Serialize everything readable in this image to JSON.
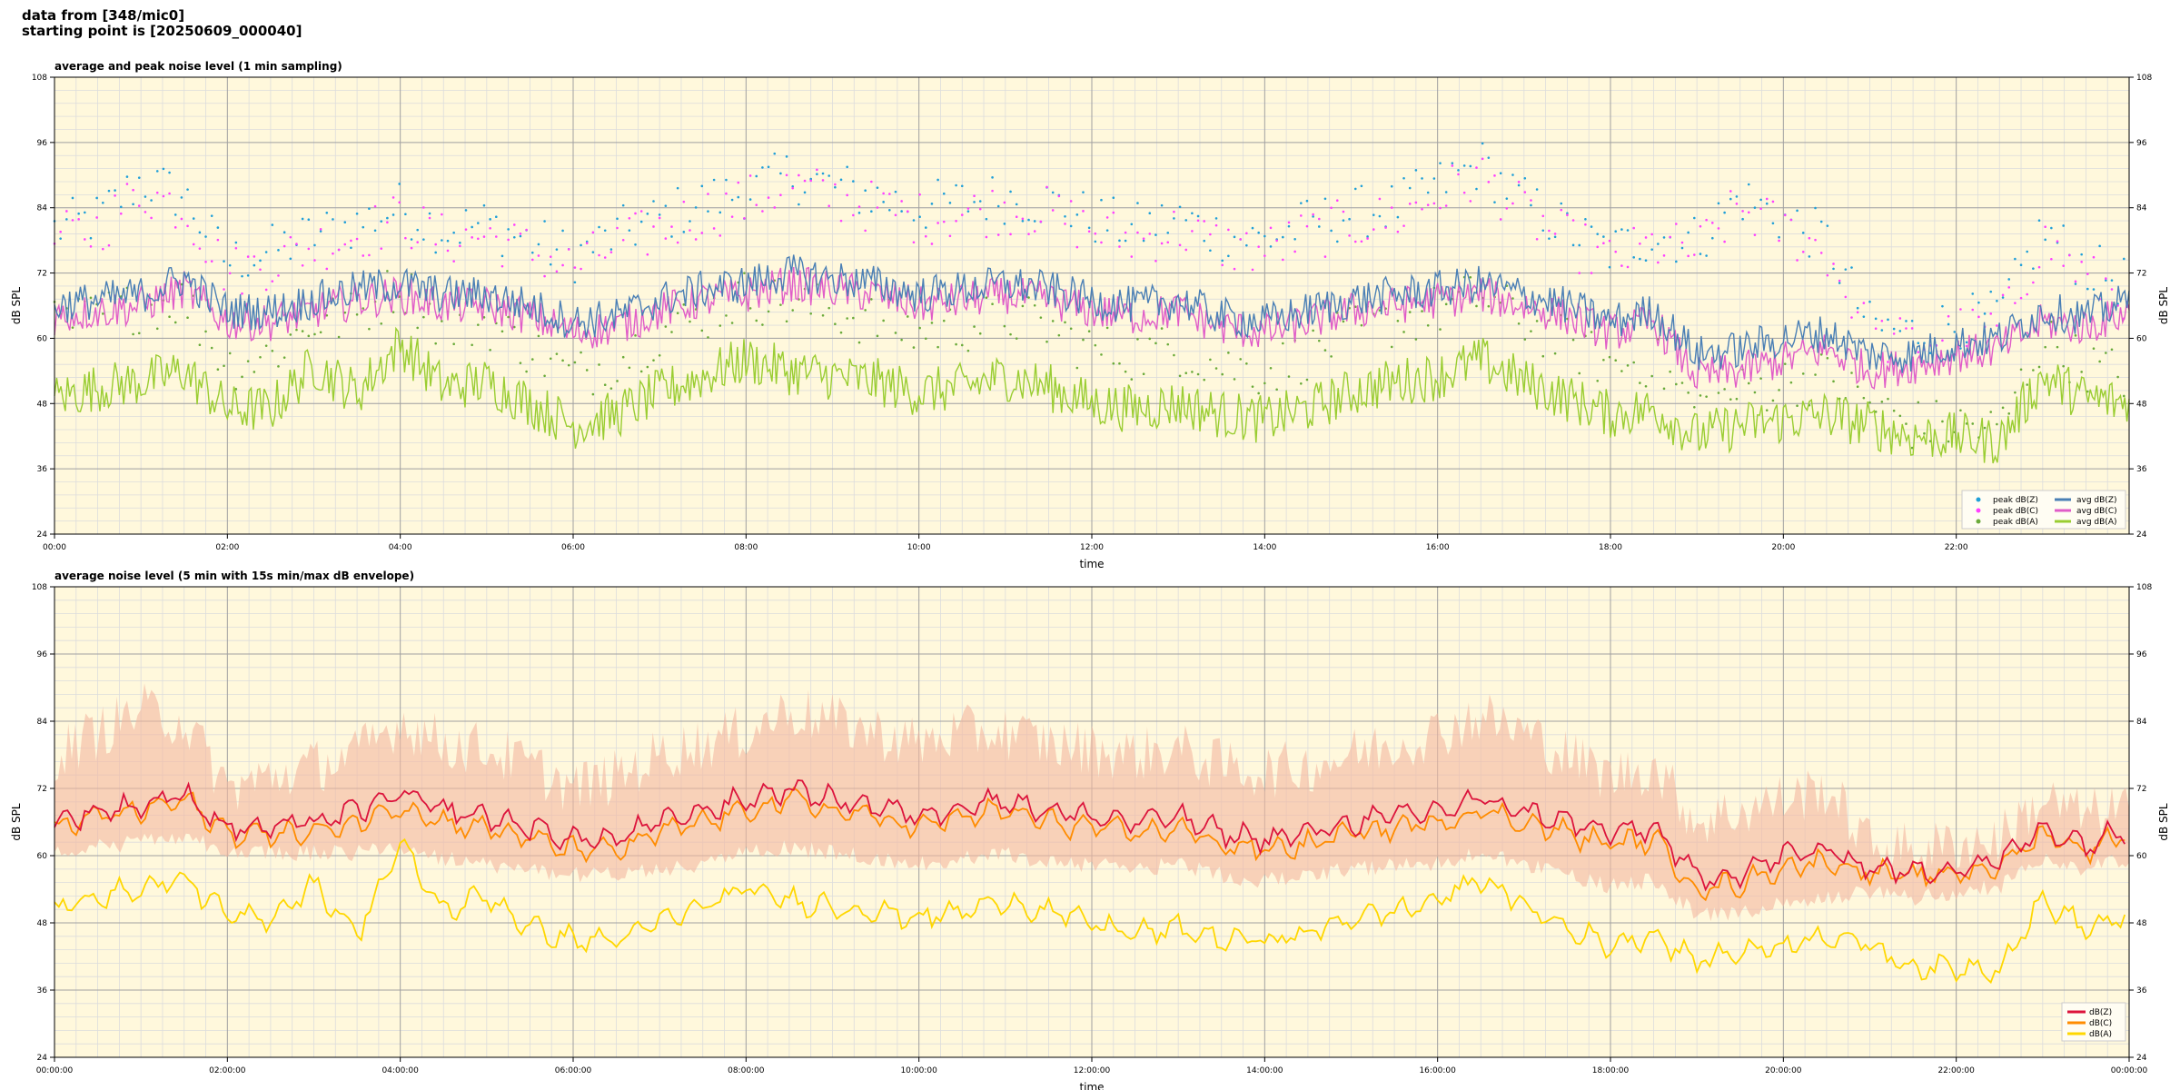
{
  "header": {
    "line1": "data from [348/mic0]",
    "line2": "starting point is [20250609_000040]"
  },
  "colors": {
    "plot_bg": "#fff8dc",
    "peak_z": "#1f9fd8",
    "peak_c": "#ff40ff",
    "peak_a": "#6aaa3a",
    "avg_z": "#4a7fb5",
    "avg_c": "#e05cc8",
    "avg_a": "#9acd32",
    "env": "#f4b8a0",
    "dbz": "#dc143c",
    "dbc": "#ff8c00",
    "dba": "#ffd700"
  },
  "chart_data": [
    {
      "type": "scatter",
      "title": "average and peak noise level (1 min sampling)",
      "xlabel": "time",
      "ylabel": "dB SPL",
      "x_unit": "hours from 00:00",
      "xlim": [
        0,
        24
      ],
      "ylim": [
        24,
        108
      ],
      "yticks": [
        24,
        36,
        48,
        60,
        72,
        84,
        96,
        108
      ],
      "xtick_labels": [
        "00:00",
        "02:00",
        "04:00",
        "06:00",
        "08:00",
        "10:00",
        "12:00",
        "14:00",
        "16:00",
        "18:00",
        "20:00",
        "22:00"
      ],
      "grid": true,
      "legend_position": "bottom-right",
      "legend": [
        "peak dB(Z)",
        "peak dB(C)",
        "peak dB(A)",
        "avg dB(Z)",
        "avg dB(C)",
        "avg dB(A)"
      ],
      "x": [
        0,
        0.5,
        1,
        1.5,
        2,
        2.5,
        3,
        3.5,
        4,
        4.5,
        5,
        5.5,
        6,
        6.5,
        7,
        7.5,
        8,
        8.5,
        9,
        9.5,
        10,
        10.5,
        11,
        11.5,
        12,
        12.5,
        13,
        13.5,
        14,
        14.5,
        15,
        15.5,
        16,
        16.5,
        17,
        17.5,
        18,
        18.5,
        19,
        19.5,
        20,
        20.5,
        21,
        21.5,
        22,
        22.5,
        23,
        23.5,
        24
      ],
      "series": [
        {
          "name": "avg dB(Z)",
          "kind": "line",
          "values": [
            66,
            67,
            68,
            71,
            65,
            65,
            67,
            69,
            70,
            68,
            68,
            66,
            63,
            64,
            67,
            69,
            70,
            72,
            71,
            70,
            68,
            69,
            70,
            69,
            67,
            66,
            67,
            64,
            63,
            65,
            67,
            68,
            69,
            70,
            68,
            66,
            63,
            65,
            57,
            58,
            60,
            61,
            57,
            57,
            59,
            60,
            65,
            64,
            67
          ]
        },
        {
          "name": "avg dB(C)",
          "kind": "line",
          "values": [
            64,
            65,
            66,
            69,
            63,
            63,
            65,
            67,
            68,
            66,
            66,
            64,
            61,
            62,
            65,
            67,
            68,
            70,
            69,
            68,
            66,
            67,
            68,
            67,
            65,
            64,
            65,
            62,
            61,
            63,
            65,
            66,
            67,
            68,
            66,
            64,
            61,
            63,
            53,
            54,
            56,
            58,
            54,
            55,
            57,
            58,
            63,
            62,
            65
          ]
        },
        {
          "name": "avg dB(A)",
          "kind": "line",
          "values": [
            49,
            51,
            52,
            54,
            47,
            47,
            55,
            50,
            59,
            51,
            52,
            48,
            44,
            46,
            50,
            53,
            56,
            54,
            53,
            52,
            50,
            51,
            53,
            51,
            48,
            47,
            48,
            46,
            45,
            47,
            50,
            52,
            53,
            56,
            52,
            49,
            46,
            47,
            42,
            44,
            45,
            46,
            44,
            42,
            42,
            41,
            53,
            49,
            48
          ]
        },
        {
          "name": "peak dB(Z)",
          "kind": "points",
          "values": [
            80,
            82,
            89,
            86,
            74,
            76,
            79,
            81,
            84,
            80,
            81,
            78,
            75,
            79,
            82,
            85,
            87,
            90,
            88,
            86,
            84,
            85,
            86,
            85,
            82,
            80,
            82,
            79,
            78,
            81,
            83,
            84,
            88,
            92,
            85,
            80,
            76,
            79,
            78,
            86,
            82,
            78,
            62,
            61,
            63,
            64,
            80,
            73,
            70
          ]
        },
        {
          "name": "peak dB(C)",
          "kind": "points",
          "values": [
            78,
            80,
            87,
            84,
            72,
            74,
            77,
            79,
            82,
            78,
            79,
            76,
            73,
            77,
            80,
            83,
            85,
            88,
            86,
            84,
            82,
            83,
            84,
            83,
            80,
            78,
            80,
            77,
            76,
            79,
            81,
            82,
            86,
            90,
            83,
            78,
            74,
            77,
            76,
            84,
            80,
            76,
            60,
            59,
            61,
            62,
            78,
            71,
            68
          ]
        },
        {
          "name": "peak dB(A)",
          "kind": "points",
          "values": [
            62,
            64,
            66,
            67,
            55,
            57,
            63,
            64,
            70,
            62,
            63,
            58,
            53,
            56,
            61,
            64,
            68,
            66,
            65,
            63,
            61,
            62,
            64,
            62,
            58,
            57,
            58,
            55,
            54,
            57,
            61,
            63,
            65,
            68,
            63,
            59,
            55,
            56,
            47,
            50,
            52,
            53,
            48,
            44,
            44,
            43,
            60,
            55,
            53
          ]
        }
      ]
    },
    {
      "type": "line",
      "title": "average noise level (5 min with 15s min/max dB envelope)",
      "xlabel": "time",
      "ylabel": "dB SPL",
      "x_unit": "hours from 00:00:00",
      "xlim": [
        0,
        24
      ],
      "ylim": [
        24,
        108
      ],
      "yticks": [
        24,
        36,
        48,
        60,
        72,
        84,
        96,
        108
      ],
      "xtick_labels": [
        "00:00:00",
        "02:00:00",
        "04:00:00",
        "06:00:00",
        "08:00:00",
        "10:00:00",
        "12:00:00",
        "14:00:00",
        "16:00:00",
        "18:00:00",
        "20:00:00",
        "22:00:00",
        "00:00:00"
      ],
      "grid": true,
      "legend_position": "bottom-right",
      "legend": [
        "dB(Z)",
        "dB(C)",
        "dB(A)"
      ],
      "x": [
        0,
        0.5,
        1,
        1.5,
        2,
        2.5,
        3,
        3.5,
        4,
        4.5,
        5,
        5.5,
        6,
        6.5,
        7,
        7.5,
        8,
        8.5,
        9,
        9.5,
        10,
        10.5,
        11,
        11.5,
        12,
        12.5,
        13,
        13.5,
        14,
        14.5,
        15,
        15.5,
        16,
        16.5,
        17,
        17.5,
        18,
        18.5,
        19,
        19.5,
        20,
        20.5,
        21,
        21.5,
        22,
        22.5,
        23,
        23.5,
        24
      ],
      "series": [
        {
          "name": "dB(Z)",
          "kind": "line",
          "values": [
            66,
            68,
            69,
            71,
            65,
            65,
            66,
            68,
            71,
            68,
            67,
            65,
            63,
            63,
            66,
            68,
            70,
            72,
            70,
            69,
            67,
            69,
            70,
            68,
            67,
            66,
            67,
            64,
            63,
            64,
            66,
            67,
            68,
            70,
            68,
            66,
            64,
            65,
            56,
            57,
            60,
            61,
            58,
            57,
            58,
            59,
            65,
            62,
            65
          ]
        },
        {
          "name": "dB(C)",
          "kind": "line",
          "values": [
            65,
            67,
            68,
            70,
            64,
            64,
            64,
            66,
            69,
            66,
            65,
            63,
            61,
            61,
            64,
            66,
            68,
            70,
            68,
            67,
            65,
            67,
            68,
            66,
            65,
            64,
            65,
            62,
            61,
            62,
            64,
            65,
            66,
            68,
            66,
            64,
            62,
            63,
            54,
            55,
            58,
            59,
            57,
            56,
            57,
            58,
            64,
            61,
            64
          ]
        },
        {
          "name": "dB(A)",
          "kind": "line",
          "values": [
            50,
            53,
            54,
            56,
            49,
            49,
            55,
            46,
            62,
            50,
            53,
            47,
            45,
            45,
            48,
            51,
            54,
            52,
            51,
            50,
            49,
            50,
            52,
            50,
            48,
            46,
            47,
            45,
            45,
            46,
            49,
            50,
            52,
            56,
            51,
            47,
            44,
            46,
            41,
            43,
            44,
            46,
            44,
            40,
            40,
            40,
            52,
            47,
            49
          ]
        },
        {
          "name": "max envelope",
          "kind": "band_upper",
          "values": [
            76,
            80,
            84,
            82,
            70,
            72,
            74,
            76,
            82,
            78,
            77,
            74,
            70,
            72,
            76,
            78,
            80,
            84,
            82,
            80,
            78,
            80,
            80,
            78,
            77,
            76,
            77,
            74,
            73,
            74,
            76,
            78,
            80,
            83,
            80,
            76,
            72,
            74,
            64,
            66,
            68,
            70,
            60,
            59,
            60,
            61,
            68,
            65,
            67
          ]
        },
        {
          "name": "min envelope",
          "kind": "band_lower",
          "values": [
            62,
            63,
            64,
            65,
            62,
            62,
            62,
            62,
            63,
            61,
            60,
            59,
            58,
            58,
            59,
            60,
            62,
            63,
            62,
            61,
            60,
            61,
            62,
            60,
            60,
            59,
            60,
            58,
            57,
            58,
            59,
            60,
            60,
            62,
            60,
            58,
            56,
            57,
            51,
            51,
            53,
            54,
            55,
            54,
            55,
            56,
            61,
            59,
            61
          ]
        }
      ]
    }
  ]
}
